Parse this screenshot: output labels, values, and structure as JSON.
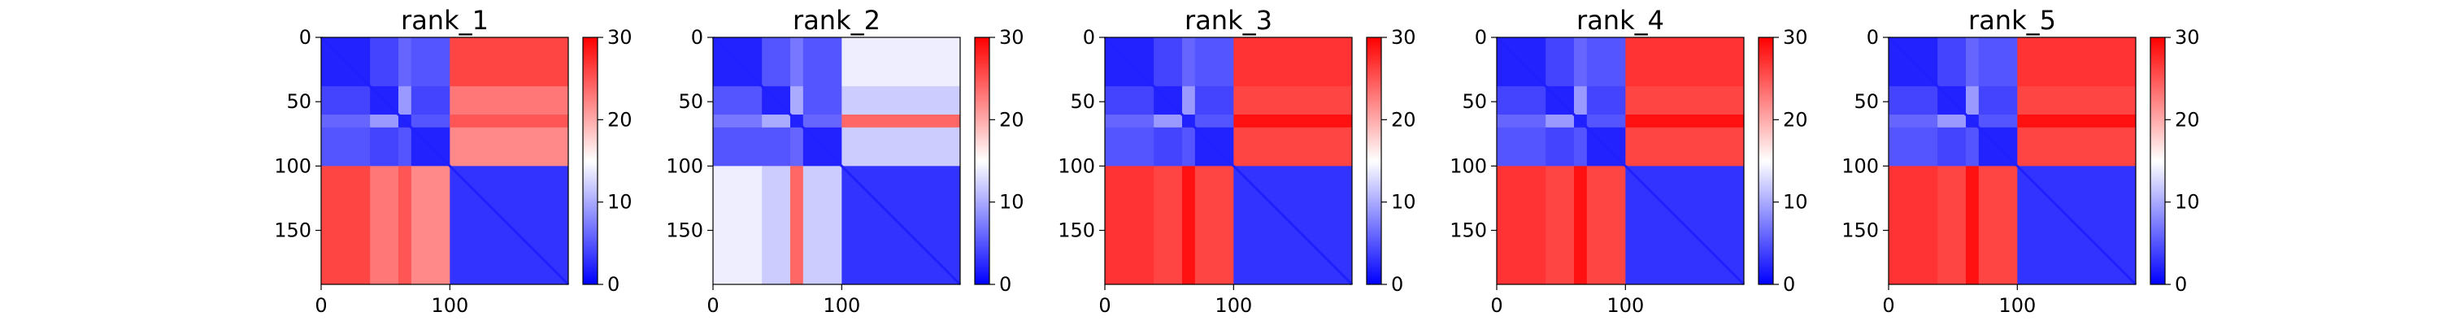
{
  "chart_data": [
    {
      "type": "heatmap",
      "title": "rank_1",
      "xlim": [
        0,
        192
      ],
      "ylim": [
        192,
        0
      ],
      "x_ticks": [
        "0",
        "100"
      ],
      "y_ticks": [
        "0",
        "50",
        "100",
        "150"
      ],
      "colorbar": {
        "min": 0,
        "max": 30,
        "ticks": [
          "0",
          "10",
          "20",
          "30"
        ],
        "colormap": "bwr"
      },
      "block_boundaries": [
        0,
        38,
        60,
        70,
        100,
        192
      ],
      "block_matrix": [
        [
          2,
          4,
          6,
          5,
          26
        ],
        [
          4,
          2,
          9,
          4,
          23
        ],
        [
          6,
          9,
          2,
          5,
          25
        ],
        [
          5,
          4,
          5,
          2,
          22
        ],
        [
          26,
          23,
          25,
          22,
          3
        ]
      ]
    },
    {
      "type": "heatmap",
      "title": "rank_2",
      "xlim": [
        0,
        192
      ],
      "ylim": [
        192,
        0
      ],
      "x_ticks": [
        "0",
        "100"
      ],
      "y_ticks": [
        "0",
        "50",
        "100",
        "150"
      ],
      "colorbar": {
        "min": 0,
        "max": 30,
        "ticks": [
          "0",
          "10",
          "20",
          "30"
        ],
        "colormap": "bwr"
      },
      "block_boundaries": [
        0,
        38,
        60,
        70,
        100,
        192
      ],
      "block_matrix": [
        [
          2,
          5,
          7,
          5,
          14
        ],
        [
          5,
          2,
          10,
          5,
          12
        ],
        [
          7,
          10,
          2,
          6,
          24
        ],
        [
          5,
          5,
          6,
          2,
          12
        ],
        [
          14,
          12,
          24,
          12,
          3
        ]
      ]
    },
    {
      "type": "heatmap",
      "title": "rank_3",
      "xlim": [
        0,
        192
      ],
      "ylim": [
        192,
        0
      ],
      "x_ticks": [
        "0",
        "100"
      ],
      "y_ticks": [
        "0",
        "50",
        "100",
        "150"
      ],
      "colorbar": {
        "min": 0,
        "max": 30,
        "ticks": [
          "0",
          "10",
          "20",
          "30"
        ],
        "colormap": "bwr"
      },
      "block_boundaries": [
        0,
        38,
        60,
        70,
        100,
        192
      ],
      "block_matrix": [
        [
          2,
          4,
          6,
          5,
          27
        ],
        [
          4,
          2,
          9,
          4,
          26
        ],
        [
          6,
          9,
          2,
          5,
          29
        ],
        [
          5,
          4,
          5,
          2,
          26
        ],
        [
          27,
          26,
          29,
          26,
          3
        ]
      ]
    },
    {
      "type": "heatmap",
      "title": "rank_4",
      "xlim": [
        0,
        192
      ],
      "ylim": [
        192,
        0
      ],
      "x_ticks": [
        "0",
        "100"
      ],
      "y_ticks": [
        "0",
        "50",
        "100",
        "150"
      ],
      "colorbar": {
        "min": 0,
        "max": 30,
        "ticks": [
          "0",
          "10",
          "20",
          "30"
        ],
        "colormap": "bwr"
      },
      "block_boundaries": [
        0,
        38,
        60,
        70,
        100,
        192
      ],
      "block_matrix": [
        [
          2,
          4,
          6,
          5,
          27
        ],
        [
          4,
          2,
          9,
          4,
          26
        ],
        [
          6,
          9,
          2,
          5,
          29
        ],
        [
          5,
          4,
          5,
          2,
          26
        ],
        [
          27,
          26,
          29,
          26,
          3
        ]
      ]
    },
    {
      "type": "heatmap",
      "title": "rank_5",
      "xlim": [
        0,
        192
      ],
      "ylim": [
        192,
        0
      ],
      "x_ticks": [
        "0",
        "100"
      ],
      "y_ticks": [
        "0",
        "50",
        "100",
        "150"
      ],
      "colorbar": {
        "min": 0,
        "max": 30,
        "ticks": [
          "0",
          "10",
          "20",
          "30"
        ],
        "colormap": "bwr"
      },
      "block_boundaries": [
        0,
        38,
        60,
        70,
        100,
        192
      ],
      "block_matrix": [
        [
          2,
          4,
          6,
          5,
          27
        ],
        [
          4,
          2,
          9,
          4,
          26
        ],
        [
          6,
          9,
          2,
          5,
          29
        ],
        [
          5,
          4,
          5,
          2,
          26
        ],
        [
          27,
          26,
          29,
          26,
          3
        ]
      ]
    }
  ]
}
